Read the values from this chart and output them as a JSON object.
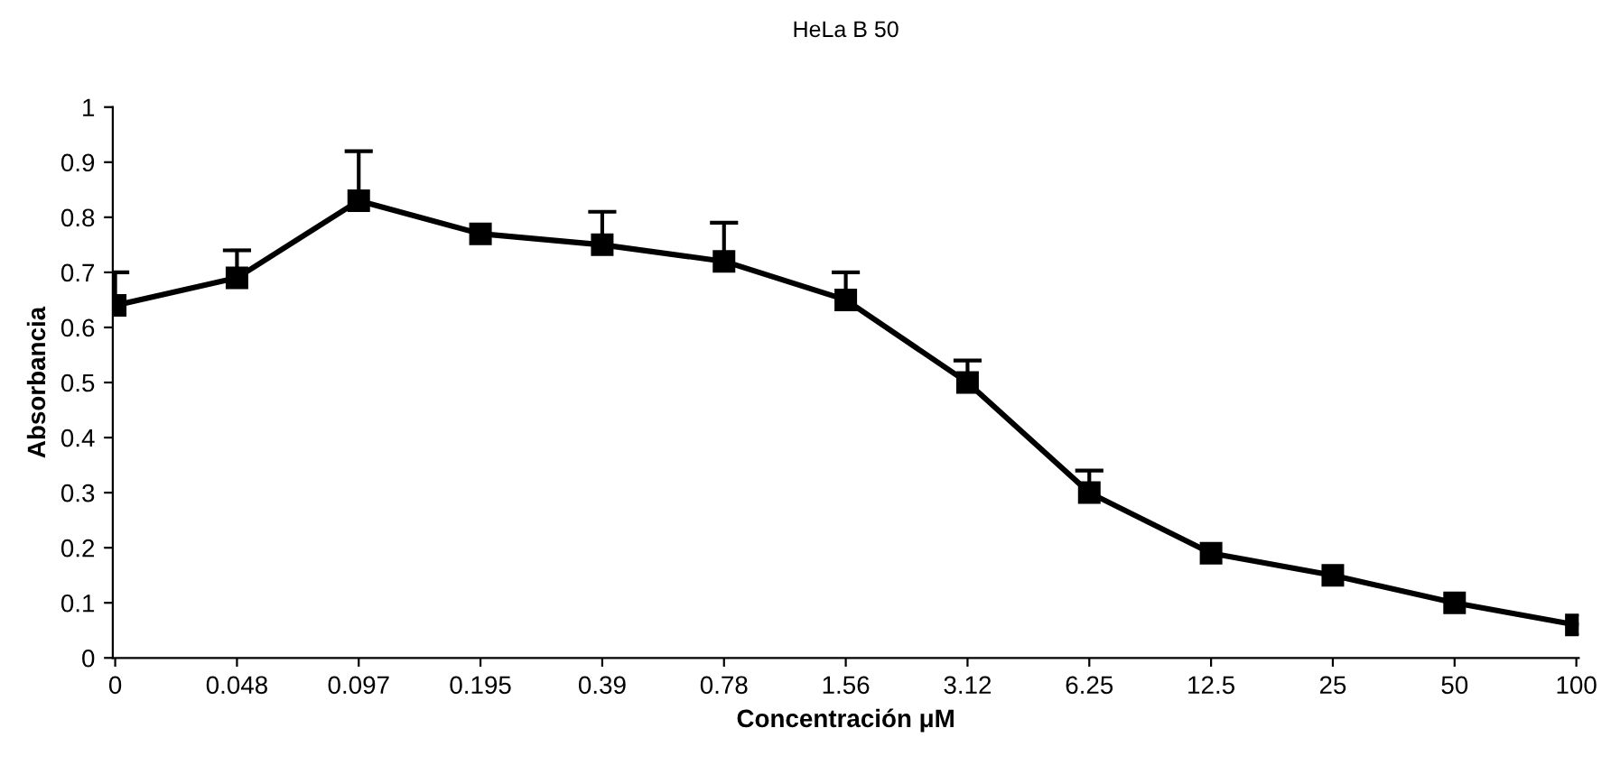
{
  "chart_data": {
    "type": "line",
    "title": "HeLa B 50",
    "xlabel": "Concentración μM",
    "ylabel": "Absorbancia",
    "categories": [
      "0",
      "0.048",
      "0.097",
      "0.195",
      "0.39",
      "0.78",
      "1.56",
      "3.12",
      "6.25",
      "12.5",
      "25",
      "50",
      "100"
    ],
    "series": [
      {
        "color": "#000000",
        "values": [
          0.64,
          0.69,
          0.83,
          0.77,
          0.75,
          0.72,
          0.65,
          0.5,
          0.3,
          0.19,
          0.15,
          0.1,
          0.06
        ],
        "errors": [
          [
            0.64,
            0.7
          ],
          [
            0.69,
            0.74
          ],
          [
            0.83,
            0.92
          ],
          null,
          [
            0.75,
            0.81
          ],
          [
            0.72,
            0.79
          ],
          [
            0.65,
            0.7
          ],
          [
            0.5,
            0.54
          ],
          [
            0.3,
            0.34
          ],
          null,
          null,
          null,
          null
        ]
      }
    ],
    "ylim": [
      0,
      1
    ],
    "yticks": [
      0,
      0.1,
      0.2,
      0.3,
      0.4,
      0.5,
      0.6,
      0.7,
      0.8,
      0.9,
      1
    ],
    "grid": false,
    "legend": false,
    "marker": "square",
    "line_style": "solid"
  }
}
